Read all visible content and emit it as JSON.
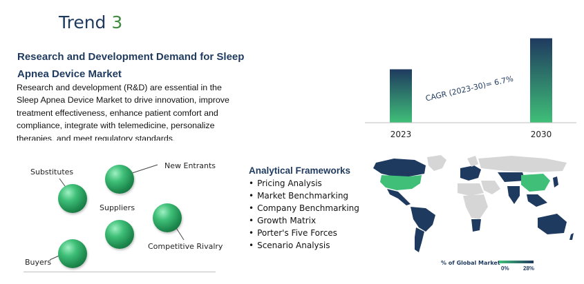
{
  "header": {
    "title": "Trend",
    "number": "3"
  },
  "rd": {
    "heading": "Research and Development Demand for Sleep Apnea Device Market",
    "body": "Research and development (R&D) are essential in the Sleep Apnea Device Market to drive innovation, improve treatment effectiveness, enhance patient comfort and compliance, integrate with telemedicine, personalize therapies, and meet regulatory standards."
  },
  "chart_data": {
    "type": "bar",
    "categories": [
      "2023",
      "2030"
    ],
    "values": [
      1.0,
      1.58
    ],
    "annotation": "CAGR (2023-30)= 6.7%",
    "ylim": [
      0,
      1.6
    ],
    "grid": false,
    "colors": {
      "top": "#1f3a5f",
      "bottom": "#3fbf78"
    }
  },
  "porter": {
    "labels": {
      "substitutes": "Substitutes",
      "new_entrants": "New Entrants",
      "suppliers": "Suppliers",
      "competitive_rivalry": "Competitive Rivalry",
      "buyers": "Buyers"
    }
  },
  "frameworks": {
    "title": "Analytical Frameworks",
    "items": [
      "Pricing Analysis",
      "Market Benchmarking",
      "Company Benchmarking",
      "Growth Matrix",
      "Porter's Five Forces",
      "Scenario Analysis"
    ]
  },
  "map": {
    "legend_title": "% of Global Market",
    "legend_min": "0%",
    "legend_max": "28%",
    "colors": {
      "high": "#3fbf78",
      "mid": "#1f3a5f",
      "low": "#d6d6d6"
    }
  }
}
